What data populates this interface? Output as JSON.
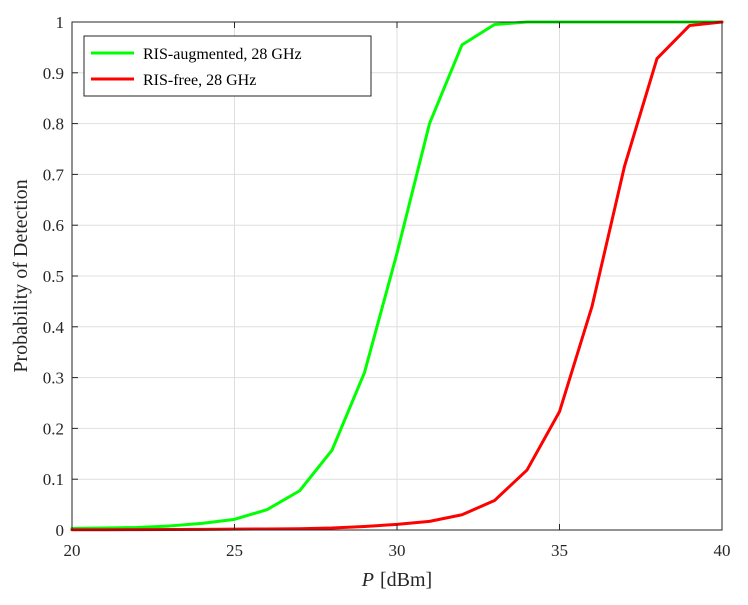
{
  "chart_data": {
    "type": "line",
    "xlabel_var": "P",
    "xlabel_unit": "[dBm]",
    "ylabel": "Probability of Detection",
    "xlim": [
      20,
      40
    ],
    "ylim": [
      0,
      1
    ],
    "xticks": [
      20,
      25,
      30,
      35,
      40
    ],
    "yticks": [
      0,
      0.1,
      0.2,
      0.3,
      0.4,
      0.5,
      0.6,
      0.7,
      0.8,
      0.9,
      1
    ],
    "grid": true,
    "legend_position": "top-left",
    "x": [
      20,
      21,
      22,
      23,
      24,
      25,
      26,
      27,
      28,
      29,
      30,
      31,
      32,
      33,
      34,
      35,
      36,
      37,
      38,
      39,
      40
    ],
    "series": [
      {
        "name": "RIS-augmented, 28 GHz",
        "color": "#00ff00",
        "values": [
          0.003,
          0.004,
          0.005,
          0.008,
          0.013,
          0.021,
          0.04,
          0.077,
          0.157,
          0.31,
          0.545,
          0.8,
          0.955,
          0.995,
          1.0,
          1.0,
          1.0,
          1.0,
          1.0,
          1.0,
          1.0
        ]
      },
      {
        "name": "RIS-free, 28 GHz",
        "color": "#ff0000",
        "values": [
          0.0005,
          0.0006,
          0.0008,
          0.001,
          0.0013,
          0.0017,
          0.002,
          0.0025,
          0.004,
          0.007,
          0.011,
          0.017,
          0.03,
          0.058,
          0.118,
          0.233,
          0.44,
          0.716,
          0.928,
          0.993,
          1.0
        ]
      }
    ]
  }
}
